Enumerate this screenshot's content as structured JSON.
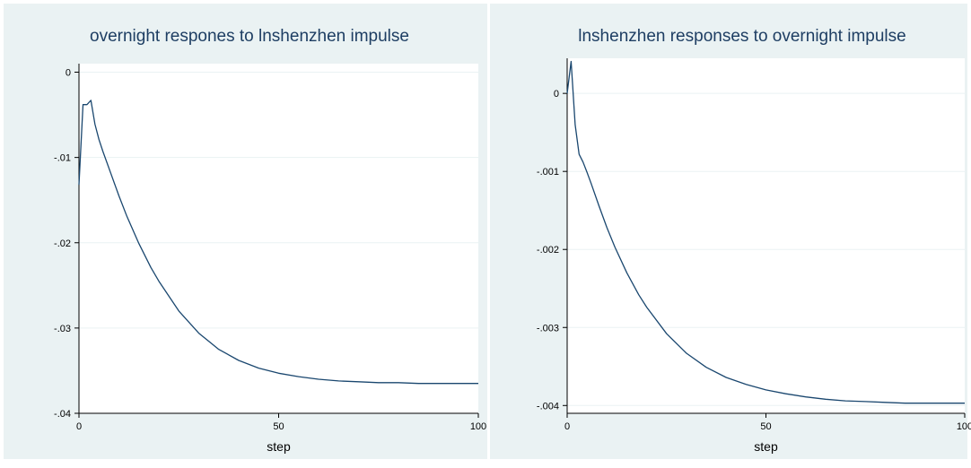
{
  "colors": {
    "panel_bg": "#eaf2f3",
    "plot_bg": "#ffffff",
    "grid": "#eaf2f3",
    "axis": "#000000",
    "line": "#1a476f",
    "title": "#1e3e63"
  },
  "chart_data": [
    {
      "type": "line",
      "title": "overnight respones to lnshenzhen impulse",
      "xlabel": "step",
      "ylabel": "",
      "xlim": [
        0,
        100
      ],
      "ylim": [
        -0.04,
        0.001
      ],
      "xticks": [
        0,
        50,
        100
      ],
      "xtick_labels": [
        "0",
        "50",
        "100"
      ],
      "yticks": [
        0,
        -0.01,
        -0.02,
        -0.03,
        -0.04
      ],
      "ytick_labels": [
        "0",
        "-.01",
        "-.02",
        "-.03",
        "-.04"
      ],
      "grid": true,
      "series": [
        {
          "x": [
            0,
            1,
            2,
            3,
            4,
            5,
            6,
            8,
            10,
            12,
            15,
            18,
            20,
            25,
            30,
            35,
            40,
            45,
            50,
            55,
            60,
            65,
            70,
            75,
            80,
            85,
            90,
            95,
            100
          ],
          "values": [
            -0.0132,
            -0.0038,
            -0.0038,
            -0.0033,
            -0.0061,
            -0.0079,
            -0.0093,
            -0.0119,
            -0.0145,
            -0.0169,
            -0.0201,
            -0.0229,
            -0.0245,
            -0.028,
            -0.0306,
            -0.0325,
            -0.0338,
            -0.0347,
            -0.0353,
            -0.0357,
            -0.036,
            -0.0362,
            -0.0363,
            -0.0364,
            -0.0364,
            -0.0365,
            -0.0365,
            -0.0365,
            -0.0365
          ]
        }
      ]
    },
    {
      "type": "line",
      "title": "lnshenzhen responses to overnight impulse",
      "xlabel": "step",
      "ylabel": "",
      "xlim": [
        0,
        100
      ],
      "ylim": [
        -0.0041,
        0.00045
      ],
      "xticks": [
        0,
        50,
        100
      ],
      "xtick_labels": [
        "0",
        "50",
        "100"
      ],
      "yticks": [
        0,
        -0.001,
        -0.002,
        -0.003,
        -0.004
      ],
      "ytick_labels": [
        "0",
        "-.001",
        "-.002",
        "-.003",
        "-.004"
      ],
      "grid": true,
      "series": [
        {
          "x": [
            0,
            1,
            2,
            3,
            4,
            5,
            6,
            8,
            10,
            12,
            15,
            18,
            20,
            25,
            30,
            35,
            40,
            45,
            50,
            55,
            60,
            65,
            70,
            75,
            80,
            85,
            90,
            95,
            100
          ],
          "values": [
            0,
            0.00041,
            -0.0004,
            -0.00078,
            -0.00088,
            -0.00101,
            -0.00115,
            -0.00144,
            -0.00172,
            -0.00197,
            -0.0023,
            -0.00258,
            -0.00274,
            -0.00308,
            -0.00333,
            -0.00351,
            -0.00364,
            -0.00373,
            -0.0038,
            -0.00385,
            -0.00389,
            -0.00392,
            -0.00394,
            -0.00395,
            -0.00396,
            -0.00397,
            -0.00397,
            -0.00397,
            -0.00397
          ]
        }
      ]
    }
  ]
}
